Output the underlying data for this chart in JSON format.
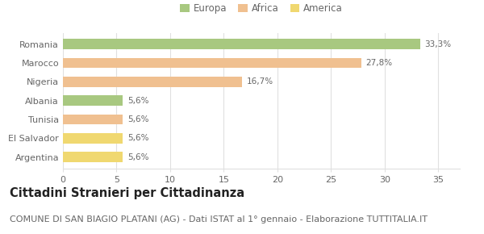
{
  "categories": [
    "Romania",
    "Marocco",
    "Nigeria",
    "Albania",
    "Tunisia",
    "El Salvador",
    "Argentina"
  ],
  "values": [
    33.3,
    27.8,
    16.7,
    5.6,
    5.6,
    5.6,
    5.6
  ],
  "labels": [
    "33,3%",
    "27,8%",
    "16,7%",
    "5,6%",
    "5,6%",
    "5,6%",
    "5,6%"
  ],
  "colors": [
    "#a8c880",
    "#f0c090",
    "#f0c090",
    "#a8c880",
    "#f0c090",
    "#f0d870",
    "#f0d870"
  ],
  "legend_items": [
    {
      "label": "Europa",
      "color": "#a8c880"
    },
    {
      "label": "Africa",
      "color": "#f0c090"
    },
    {
      "label": "America",
      "color": "#f0d870"
    }
  ],
  "xlim": [
    0,
    37
  ],
  "xticks": [
    0,
    5,
    10,
    15,
    20,
    25,
    30,
    35
  ],
  "title": "Cittadini Stranieri per Cittadinanza",
  "subtitle": "COMUNE DI SAN BIAGIO PLATANI (AG) - Dati ISTAT al 1° gennaio - Elaborazione TUTTITALIA.IT",
  "title_fontsize": 10.5,
  "subtitle_fontsize": 8,
  "label_fontsize": 7.5,
  "tick_fontsize": 8,
  "legend_fontsize": 8.5,
  "bar_height": 0.55,
  "background_color": "#ffffff",
  "grid_color": "#e0e0e0",
  "text_color": "#666666",
  "title_color": "#222222"
}
